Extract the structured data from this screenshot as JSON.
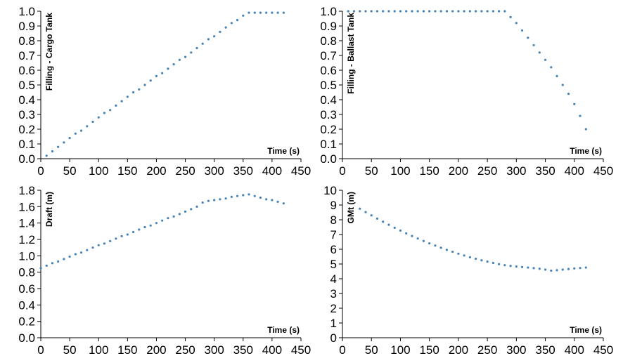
{
  "colors": {
    "series": "#4682b4",
    "axis": "#000000"
  },
  "chart_data": [
    {
      "type": "scatter",
      "xlabel": "Time (s)",
      "ylabel": "Filling - Cargo Tank",
      "xlim": [
        0,
        450
      ],
      "ylim": [
        0,
        1.0
      ],
      "xticks": [
        "0",
        "50",
        "100",
        "150",
        "200",
        "250",
        "300",
        "350",
        "400",
        "450"
      ],
      "yticks": [
        "0.0",
        "0.1",
        "0.2",
        "0.3",
        "0.4",
        "0.5",
        "0.6",
        "0.7",
        "0.8",
        "0.9",
        "1.0"
      ],
      "x": [
        10,
        20,
        30,
        40,
        50,
        60,
        70,
        80,
        90,
        100,
        110,
        120,
        130,
        140,
        150,
        160,
        170,
        180,
        190,
        200,
        210,
        220,
        230,
        240,
        250,
        260,
        270,
        280,
        290,
        300,
        310,
        320,
        330,
        340,
        350,
        360,
        370,
        380,
        390,
        400,
        410,
        420
      ],
      "y": [
        0.02,
        0.05,
        0.08,
        0.11,
        0.14,
        0.17,
        0.19,
        0.22,
        0.25,
        0.28,
        0.31,
        0.33,
        0.36,
        0.39,
        0.42,
        0.45,
        0.47,
        0.5,
        0.53,
        0.56,
        0.58,
        0.61,
        0.64,
        0.67,
        0.69,
        0.72,
        0.75,
        0.78,
        0.81,
        0.83,
        0.86,
        0.89,
        0.92,
        0.94,
        0.97,
        0.99,
        0.99,
        0.99,
        0.99,
        0.99,
        0.99,
        0.99
      ]
    },
    {
      "type": "scatter",
      "xlabel": "Time (s)",
      "ylabel": "Filling - Ballast Tank",
      "xlim": [
        0,
        450
      ],
      "ylim": [
        0,
        1.0
      ],
      "xticks": [
        "0",
        "50",
        "100",
        "150",
        "200",
        "250",
        "300",
        "350",
        "400",
        "450"
      ],
      "yticks": [
        "0.0",
        "0.1",
        "0.2",
        "0.3",
        "0.4",
        "0.5",
        "0.6",
        "0.7",
        "0.8",
        "0.9",
        "1.0"
      ],
      "x": [
        10,
        20,
        30,
        40,
        50,
        60,
        70,
        80,
        90,
        100,
        110,
        120,
        130,
        140,
        150,
        160,
        170,
        180,
        190,
        200,
        210,
        220,
        230,
        240,
        250,
        260,
        270,
        280,
        290,
        300,
        310,
        320,
        330,
        340,
        350,
        360,
        370,
        380,
        390,
        400,
        410,
        420
      ],
      "y": [
        1.0,
        1.0,
        1.0,
        1.0,
        1.0,
        1.0,
        1.0,
        1.0,
        1.0,
        1.0,
        1.0,
        1.0,
        1.0,
        1.0,
        1.0,
        1.0,
        1.0,
        1.0,
        1.0,
        1.0,
        1.0,
        1.0,
        1.0,
        1.0,
        1.0,
        1.0,
        1.0,
        1.0,
        0.96,
        0.92,
        0.87,
        0.82,
        0.77,
        0.72,
        0.67,
        0.62,
        0.56,
        0.5,
        0.44,
        0.37,
        0.29,
        0.2
      ]
    },
    {
      "type": "scatter",
      "xlabel": "Time (s)",
      "ylabel": "Draft (m)",
      "xlim": [
        0,
        450
      ],
      "ylim": [
        0,
        1.8
      ],
      "xticks": [
        "0",
        "50",
        "100",
        "150",
        "200",
        "250",
        "300",
        "350",
        "400",
        "450"
      ],
      "yticks": [
        "0.0",
        "0.2",
        "0.4",
        "0.6",
        "0.8",
        "1.0",
        "1.2",
        "1.4",
        "1.6",
        "1.8"
      ],
      "x": [
        0,
        10,
        20,
        30,
        40,
        50,
        60,
        70,
        80,
        90,
        100,
        110,
        120,
        130,
        140,
        150,
        160,
        170,
        180,
        190,
        200,
        210,
        220,
        230,
        240,
        250,
        260,
        270,
        280,
        290,
        300,
        310,
        320,
        330,
        340,
        350,
        360,
        370,
        380,
        390,
        400,
        410,
        420
      ],
      "y": [
        0.85,
        0.88,
        0.91,
        0.93,
        0.96,
        0.99,
        1.02,
        1.04,
        1.07,
        1.1,
        1.13,
        1.15,
        1.18,
        1.21,
        1.24,
        1.26,
        1.29,
        1.32,
        1.35,
        1.37,
        1.4,
        1.43,
        1.46,
        1.48,
        1.51,
        1.54,
        1.57,
        1.6,
        1.65,
        1.67,
        1.68,
        1.69,
        1.7,
        1.72,
        1.73,
        1.74,
        1.75,
        1.73,
        1.71,
        1.69,
        1.68,
        1.66,
        1.64
      ]
    },
    {
      "type": "scatter",
      "xlabel": "Time (s)",
      "ylabel": "GMt (m)",
      "xlim": [
        0,
        450
      ],
      "ylim": [
        0,
        10
      ],
      "xticks": [
        "0",
        "50",
        "100",
        "150",
        "200",
        "250",
        "300",
        "350",
        "400",
        "450"
      ],
      "yticks": [
        "0",
        "1",
        "2",
        "3",
        "4",
        "5",
        "6",
        "7",
        "8",
        "9",
        "10"
      ],
      "x": [
        30,
        40,
        50,
        60,
        70,
        80,
        90,
        100,
        110,
        120,
        130,
        140,
        150,
        160,
        170,
        180,
        190,
        200,
        210,
        220,
        230,
        240,
        250,
        260,
        270,
        280,
        290,
        300,
        310,
        320,
        330,
        340,
        350,
        360,
        370,
        380,
        390,
        400,
        410,
        420
      ],
      "y": [
        8.75,
        8.52,
        8.3,
        8.08,
        7.87,
        7.66,
        7.46,
        7.27,
        7.08,
        6.9,
        6.73,
        6.56,
        6.4,
        6.25,
        6.1,
        5.96,
        5.83,
        5.7,
        5.58,
        5.46,
        5.35,
        5.25,
        5.16,
        5.07,
        4.99,
        4.92,
        4.87,
        4.83,
        4.79,
        4.76,
        4.72,
        4.68,
        4.62,
        4.55,
        4.58,
        4.62,
        4.66,
        4.7,
        4.73,
        4.76
      ]
    }
  ]
}
